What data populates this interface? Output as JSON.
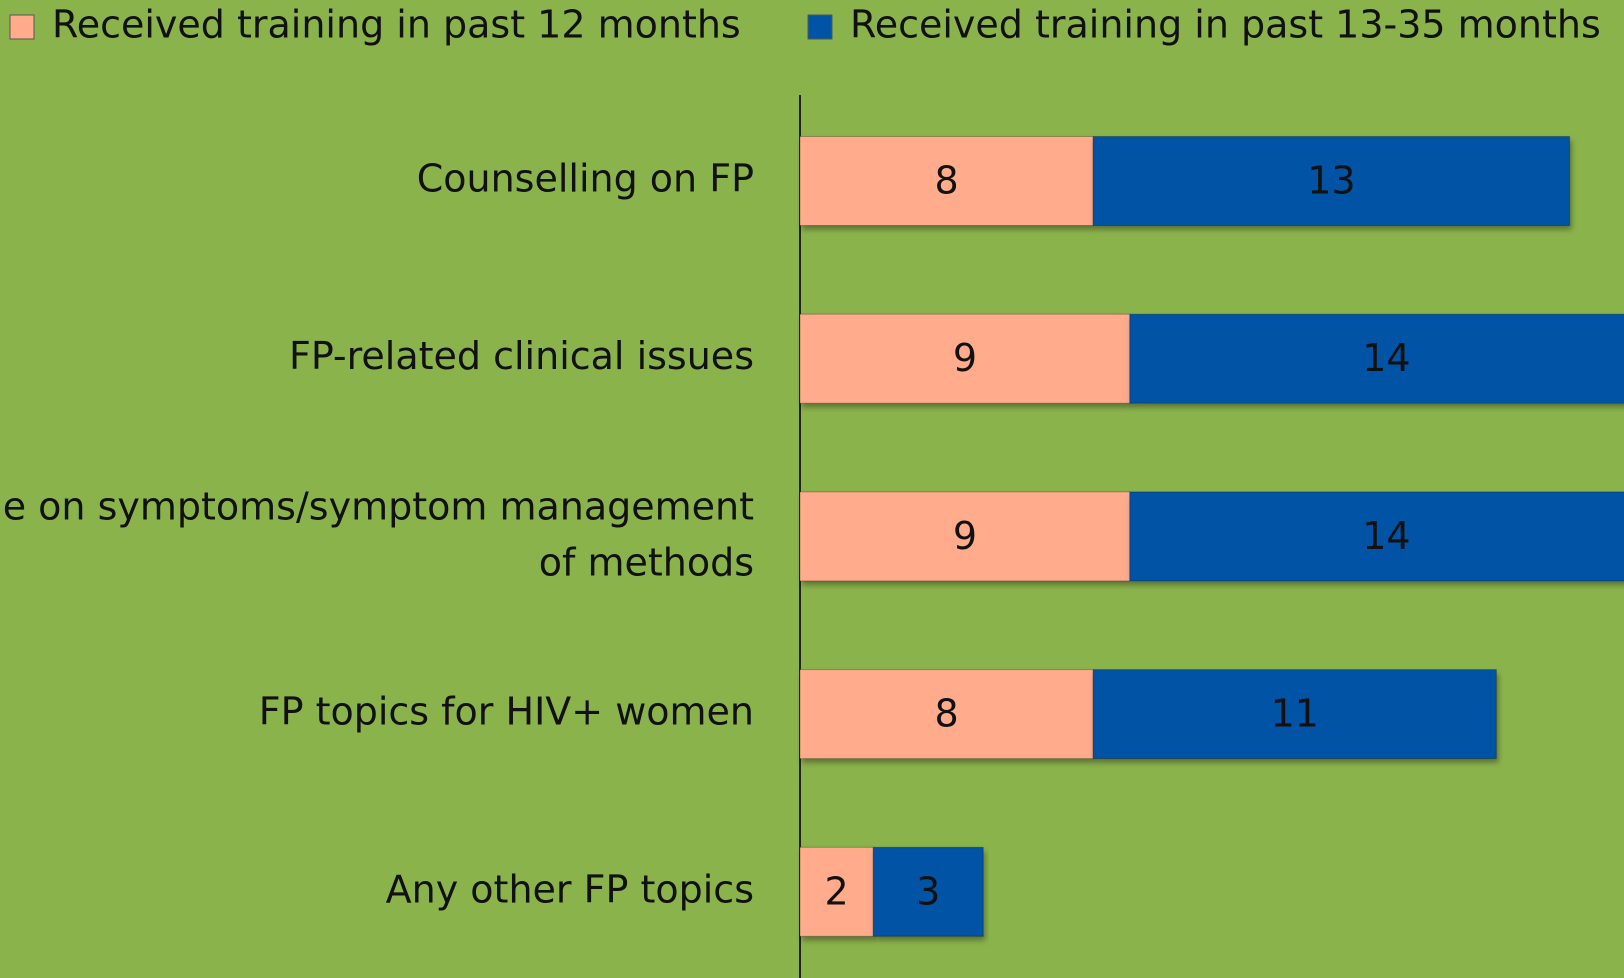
{
  "chart_data": {
    "type": "stacked_bar_horizontal",
    "categories": [
      "Counselling on FP",
      "FP-related clinical issues",
      "e on symptoms/symptom management\nof methods",
      "FP topics for HIV+ women",
      "Any other FP topics"
    ],
    "series": [
      {
        "name": "Received training in past 12 months",
        "color": "#ffab8c",
        "values": [
          8,
          9,
          9,
          8,
          2
        ]
      },
      {
        "name": "Received training in past 13-35 months",
        "color": "#0053a5",
        "values": [
          13,
          14,
          14,
          11,
          3
        ]
      }
    ],
    "background": "#8bb34c"
  }
}
